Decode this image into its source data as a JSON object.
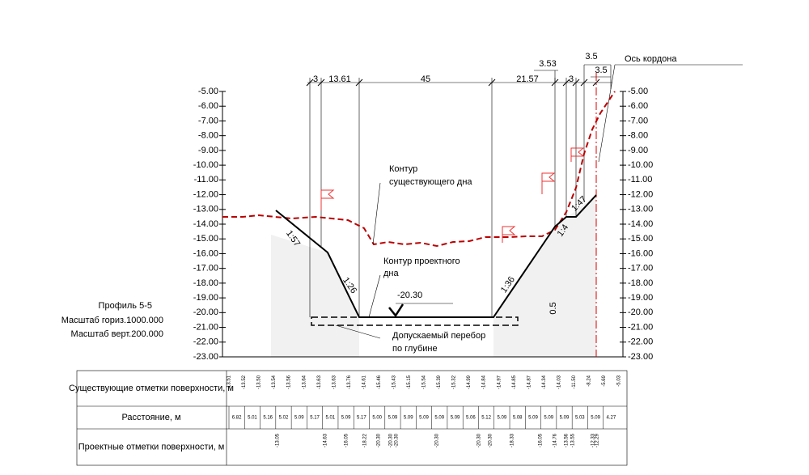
{
  "title": [
    "Профиль 5-5",
    "Масштаб гориз.1000.000",
    "Масштаб верт.200.000"
  ],
  "axis_ticks": [
    "-5.00",
    "-6.00",
    "-7.00",
    "-8.00",
    "-9.00",
    "-10.00",
    "-11.00",
    "-12.00",
    "-13.00",
    "-14.00",
    "-15.00",
    "-16.00",
    "-17.00",
    "-18.00",
    "-19.00",
    "-20.00",
    "-21.00",
    "-22.00",
    "-23.00"
  ],
  "dimensions": [
    "3",
    "13.61",
    "45",
    "21.57",
    "3.53",
    "3",
    "3.5",
    "3.5"
  ],
  "axis_label": "Ось кордона",
  "annotations": {
    "existing": [
      "Контур",
      "существующего дна"
    ],
    "design": [
      "Контур проектного",
      "дна"
    ],
    "overdig": [
      "Допускаемый перебор",
      "по глубине"
    ],
    "bottom_level": "-20.30",
    "overdig_depth": "0.5"
  },
  "slopes": [
    "1:57",
    "1:26",
    "1:36",
    "1:4",
    "1:47"
  ],
  "table": {
    "rows": [
      {
        "label": "Существующие отметки поверхности, м",
        "values": [
          "-13.51",
          "-13.52",
          "-13.50",
          "-13.54",
          "-13.56",
          "-13.64",
          "-13.63",
          "-13.63",
          "-13.76",
          "-14.61",
          "-15.46",
          "-15.43",
          "-15.15",
          "-15.54",
          "-15.39",
          "-15.32",
          "-14.99",
          "-14.84",
          "-14.97",
          "-14.85",
          "-14.87",
          "-14.34",
          "-14.03",
          "-11.50",
          "-8.24",
          "-5.69",
          "-5.03"
        ]
      },
      {
        "label": "Расстояние, м",
        "values": [
          "6.82",
          "5.01",
          "5.16",
          "5.02",
          "5.09",
          "5.17",
          "5.01",
          "5.09",
          "5.17",
          "5.00",
          "5.09",
          "5.09",
          "5.09",
          "5.09",
          "5.09",
          "5.06",
          "5.12",
          "5.09",
          "5.08",
          "5.09",
          "5.09",
          "5.09",
          "5.03",
          "5.09",
          "4.27"
        ]
      },
      {
        "label": "Проектные отметки поверхности, м",
        "values": [
          "-13.05",
          "-14.63",
          "-16.05",
          "-18.22",
          "-20.30",
          "-20.30",
          "-20.30",
          "-20.30",
          "-20.30",
          "-20.30",
          "-18.33",
          "-16.05",
          "-14.76",
          "-13.56",
          "-13.55",
          "-12.33",
          "-12.29"
        ]
      }
    ]
  }
}
